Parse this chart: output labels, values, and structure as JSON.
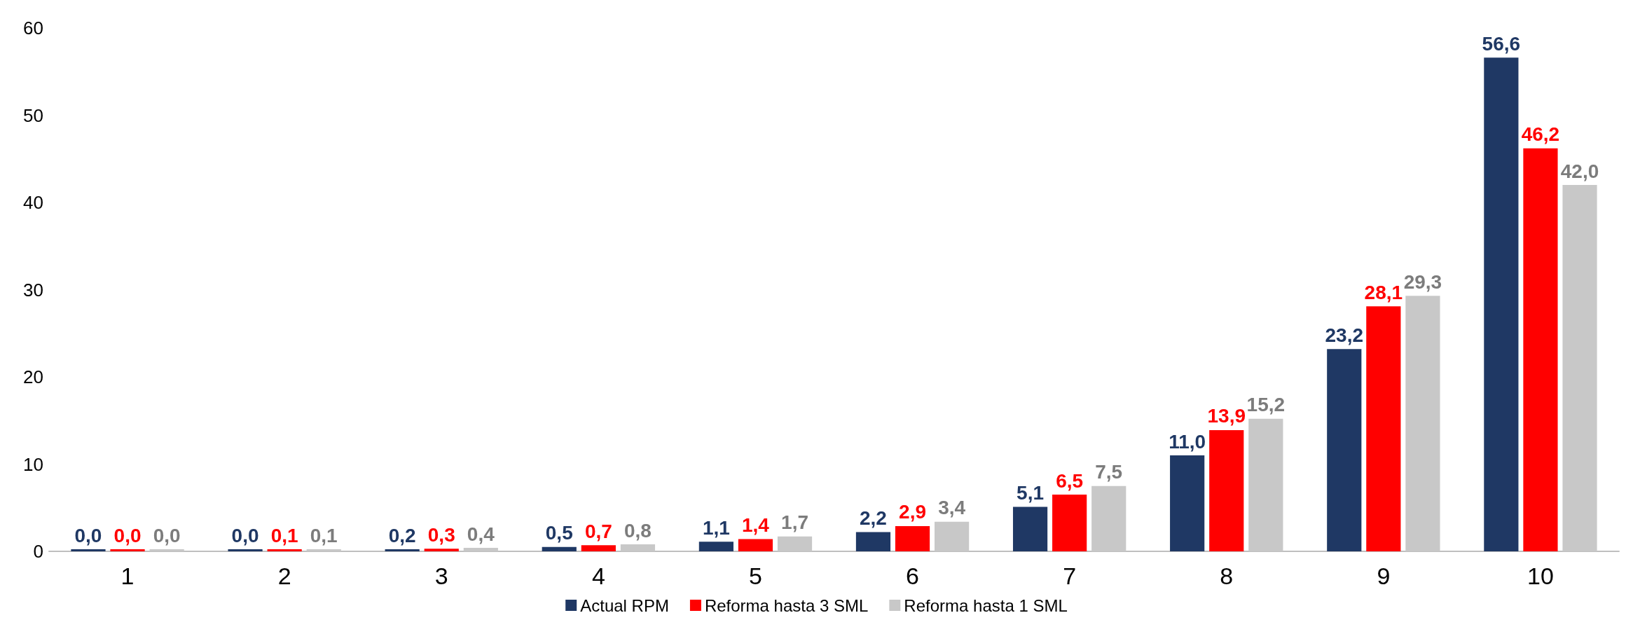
{
  "chart_data": {
    "type": "bar",
    "categories": [
      "1",
      "2",
      "3",
      "4",
      "5",
      "6",
      "7",
      "8",
      "9",
      "10"
    ],
    "ylim": [
      0,
      60
    ],
    "yticks": [
      0,
      10,
      20,
      30,
      40,
      50,
      60
    ],
    "grid": false,
    "legend": "bottom",
    "series": [
      {
        "name": "Actual RPM",
        "color": "#1f3864",
        "values": [
          0.0,
          0.0,
          0.2,
          0.5,
          1.1,
          2.2,
          5.1,
          11.0,
          23.2,
          56.6
        ],
        "value_labels": [
          "0,0",
          "0,0",
          "0,2",
          "0,5",
          "1,1",
          "2,2",
          "5,1",
          "11,0",
          "23,2",
          "56,6"
        ]
      },
      {
        "name": "Reforma hasta 3 SML",
        "color": "#ff0000",
        "values": [
          0.0,
          0.1,
          0.3,
          0.7,
          1.4,
          2.9,
          6.5,
          13.9,
          28.1,
          46.2
        ],
        "value_labels": [
          "0,0",
          "0,1",
          "0,3",
          "0,7",
          "1,4",
          "2,9",
          "6,5",
          "13,9",
          "28,1",
          "46,2"
        ]
      },
      {
        "name": "Reforma hasta 1 SML",
        "color": "#c8c8c8",
        "values": [
          0.0,
          0.1,
          0.4,
          0.8,
          1.7,
          3.4,
          7.5,
          15.2,
          29.3,
          42.0
        ],
        "value_labels": [
          "0,0",
          "0,1",
          "0,4",
          "0,8",
          "1,7",
          "3,4",
          "7,5",
          "15,2",
          "29,3",
          "42,0"
        ]
      }
    ]
  }
}
